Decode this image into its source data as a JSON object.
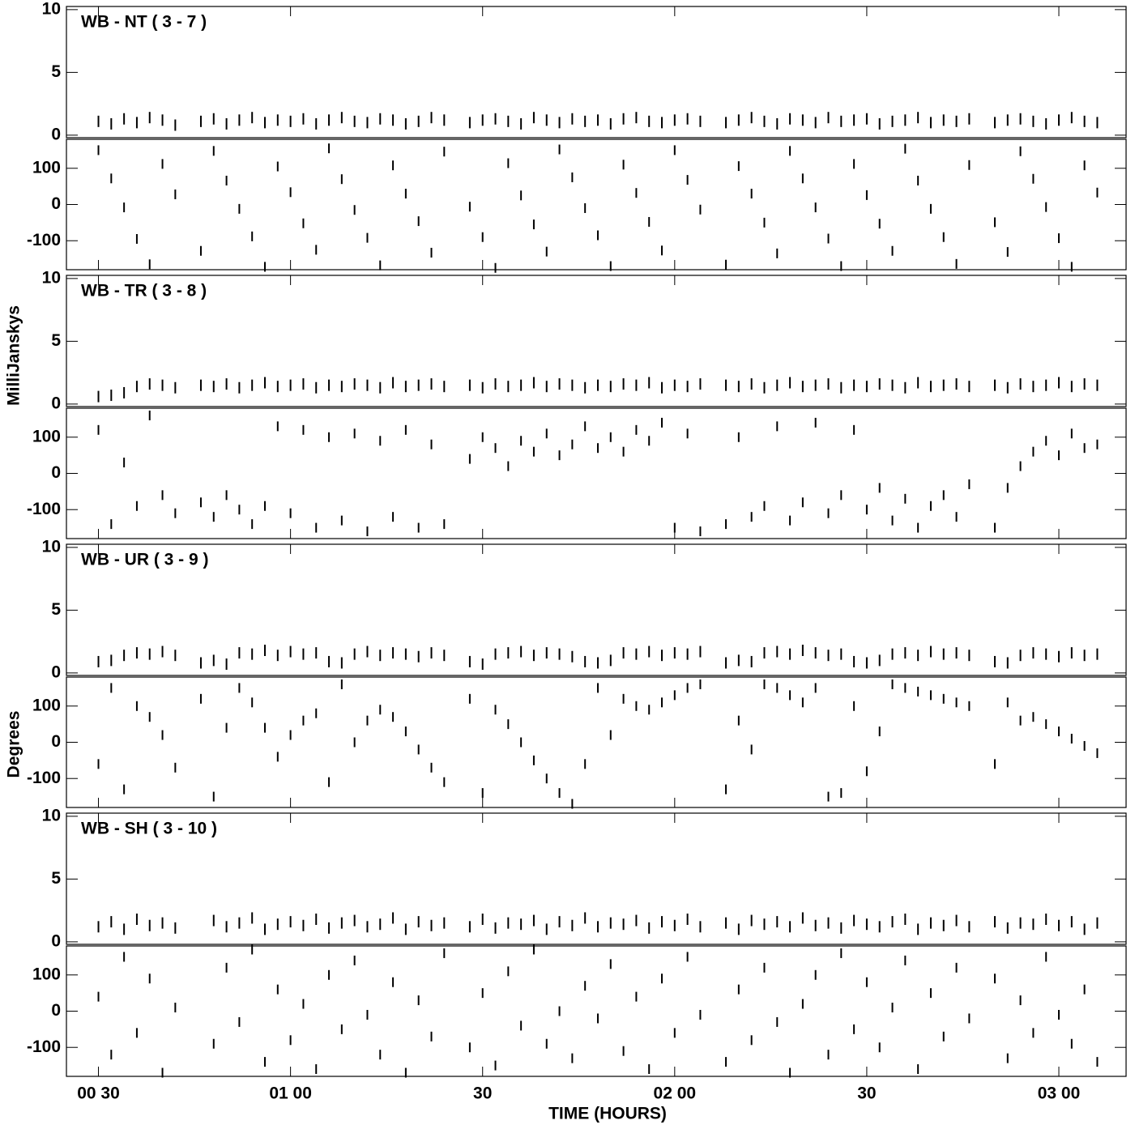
{
  "chart_data": {
    "type": "scatter",
    "xlabel": "TIME (HOURS)",
    "amplitude_ylabel": "MilliJanskys",
    "phase_ylabel": "Degrees",
    "color": "#000000",
    "xlim": [
      25,
      190.5
    ],
    "xticks": [
      {
        "value": 30,
        "label": "00 30"
      },
      {
        "value": 60,
        "label": "01 00"
      },
      {
        "value": 90,
        "label": "30"
      },
      {
        "value": 120,
        "label": "02 00"
      },
      {
        "value": 150,
        "label": "30"
      },
      {
        "value": 180,
        "label": "03 00"
      }
    ],
    "amplitude_ylim": [
      -0.2,
      10.25
    ],
    "amplitude_yticks": [
      0,
      5,
      10
    ],
    "phase_ylim": [
      -180,
      180
    ],
    "phase_yticks": [
      -100,
      0,
      100
    ],
    "x": [
      30,
      32,
      34,
      36,
      38,
      40,
      42,
      44,
      46,
      48,
      50,
      52,
      54,
      56,
      58,
      60,
      62,
      64,
      66,
      68,
      70,
      72,
      74,
      76,
      78,
      80,
      82,
      84,
      86,
      88,
      90,
      92,
      94,
      96,
      98,
      100,
      102,
      104,
      106,
      108,
      110,
      112,
      114,
      116,
      118,
      120,
      122,
      124,
      126,
      128,
      130,
      132,
      134,
      136,
      138,
      140,
      142,
      144,
      146,
      148,
      150,
      152,
      154,
      156,
      158,
      160,
      162,
      164,
      166,
      168,
      170,
      172,
      174,
      176,
      178,
      180,
      182,
      184,
      186
    ],
    "panels": [
      {
        "title": "WB - NT ( 3 - 7 )",
        "amplitude": [
          1.1,
          0.9,
          1.3,
          1.0,
          1.4,
          1.2,
          0.8,
          null,
          1.1,
          1.3,
          0.9,
          1.2,
          1.4,
          1.0,
          1.2,
          1.1,
          1.3,
          0.9,
          1.2,
          1.4,
          1.1,
          1.0,
          1.3,
          1.2,
          0.9,
          1.1,
          1.4,
          1.2,
          null,
          1.0,
          1.2,
          1.3,
          1.1,
          0.9,
          1.4,
          1.2,
          1.0,
          1.3,
          1.1,
          1.2,
          0.9,
          1.3,
          1.4,
          1.1,
          1.0,
          1.2,
          1.3,
          1.1,
          null,
          1.0,
          1.2,
          1.4,
          1.1,
          0.9,
          1.3,
          1.2,
          1.0,
          1.4,
          1.1,
          1.2,
          1.3,
          0.9,
          1.1,
          1.2,
          1.4,
          1.0,
          1.2,
          1.1,
          1.3,
          null,
          1.0,
          1.2,
          1.3,
          1.1,
          0.9,
          1.2,
          1.4,
          1.1,
          1.0
        ],
        "phase": [
          150,
          72,
          -8,
          -95,
          -165,
          112,
          28,
          null,
          -128,
          148,
          66,
          -12,
          -88,
          -172,
          105,
          34,
          -52,
          -125,
          155,
          70,
          -15,
          -92,
          -168,
          108,
          30,
          -46,
          -133,
          146,
          null,
          -6,
          -90,
          -175,
          114,
          25,
          -55,
          -130,
          152,
          75,
          -10,
          -85,
          -170,
          110,
          32,
          -48,
          -127,
          150,
          68,
          -14,
          null,
          -166,
          106,
          30,
          -50,
          -135,
          148,
          72,
          -8,
          -94,
          -170,
          112,
          26,
          -53,
          -128,
          154,
          66,
          -12,
          -90,
          -164,
          109,
          null,
          -49,
          -131,
          147,
          71,
          -7,
          -93,
          -172,
          108,
          33
        ]
      },
      {
        "title": "WB - TR ( 3 - 8 )",
        "amplitude": [
          0.6,
          0.7,
          0.9,
          1.4,
          1.6,
          1.5,
          1.3,
          null,
          1.5,
          1.4,
          1.6,
          1.3,
          1.5,
          1.7,
          1.4,
          1.5,
          1.6,
          1.3,
          1.5,
          1.4,
          1.6,
          1.5,
          1.3,
          1.7,
          1.4,
          1.5,
          1.6,
          1.4,
          null,
          1.5,
          1.3,
          1.6,
          1.4,
          1.5,
          1.7,
          1.4,
          1.6,
          1.5,
          1.3,
          1.5,
          1.4,
          1.6,
          1.5,
          1.7,
          1.3,
          1.5,
          1.4,
          1.6,
          null,
          1.5,
          1.4,
          1.6,
          1.3,
          1.5,
          1.7,
          1.4,
          1.5,
          1.6,
          1.3,
          1.5,
          1.4,
          1.6,
          1.5,
          1.3,
          1.7,
          1.4,
          1.5,
          1.6,
          1.4,
          null,
          1.5,
          1.3,
          1.6,
          1.4,
          1.5,
          1.7,
          1.4,
          1.6,
          1.5
        ],
        "phase": [
          120,
          -140,
          30,
          -90,
          160,
          -60,
          -110,
          null,
          -80,
          -120,
          -60,
          -100,
          -140,
          -90,
          130,
          -110,
          120,
          -150,
          100,
          -130,
          110,
          -160,
          90,
          -120,
          120,
          -150,
          80,
          -140,
          null,
          40,
          100,
          70,
          20,
          90,
          60,
          110,
          50,
          80,
          130,
          70,
          100,
          60,
          120,
          90,
          140,
          -150,
          110,
          -160,
          null,
          -140,
          100,
          -120,
          -90,
          130,
          -130,
          -80,
          140,
          -110,
          -60,
          120,
          -100,
          -40,
          -130,
          -70,
          -150,
          -90,
          -60,
          -120,
          -30,
          null,
          -150,
          -40,
          20,
          60,
          90,
          50,
          110,
          70,
          80
        ]
      },
      {
        "title": "WB - UR ( 3 - 9 )",
        "amplitude": [
          0.9,
          1.0,
          1.4,
          1.6,
          1.5,
          1.7,
          1.4,
          null,
          0.8,
          1.0,
          0.7,
          1.6,
          1.5,
          1.8,
          1.4,
          1.7,
          1.5,
          1.6,
          0.9,
          0.8,
          1.5,
          1.7,
          1.4,
          1.6,
          1.5,
          1.3,
          1.6,
          1.4,
          null,
          0.9,
          0.7,
          1.5,
          1.6,
          1.7,
          1.4,
          1.6,
          1.5,
          1.3,
          0.9,
          0.8,
          1.0,
          1.6,
          1.5,
          1.7,
          1.4,
          1.6,
          1.5,
          1.7,
          null,
          0.8,
          1.0,
          0.9,
          1.6,
          1.7,
          1.5,
          1.8,
          1.6,
          1.4,
          1.5,
          0.9,
          0.8,
          1.0,
          1.5,
          1.6,
          1.4,
          1.7,
          1.5,
          1.6,
          1.4,
          null,
          0.9,
          0.8,
          1.4,
          1.6,
          1.5,
          1.3,
          1.6,
          1.4,
          1.5
        ],
        "phase": [
          -60,
          150,
          -130,
          100,
          70,
          20,
          -70,
          null,
          120,
          -150,
          40,
          150,
          110,
          40,
          -40,
          20,
          60,
          80,
          -110,
          160,
          0,
          60,
          90,
          70,
          30,
          -20,
          -70,
          -110,
          null,
          120,
          -140,
          90,
          50,
          0,
          -50,
          -100,
          -140,
          -170,
          -60,
          150,
          20,
          120,
          100,
          90,
          110,
          130,
          150,
          160,
          null,
          -130,
          60,
          -20,
          160,
          150,
          130,
          110,
          150,
          -150,
          -140,
          100,
          -80,
          30,
          160,
          150,
          140,
          130,
          120,
          110,
          100,
          null,
          -60,
          110,
          60,
          70,
          50,
          30,
          10,
          -10,
          -30
        ]
      },
      {
        "title": "WB - SH ( 3 - 10 )",
        "amplitude": [
          1.2,
          1.6,
          1.0,
          1.8,
          1.3,
          1.5,
          1.1,
          null,
          null,
          1.7,
          1.2,
          1.5,
          1.9,
          1.0,
          1.4,
          1.6,
          1.3,
          1.8,
          1.1,
          1.5,
          1.7,
          1.2,
          1.4,
          1.9,
          1.0,
          1.6,
          1.3,
          1.5,
          null,
          1.2,
          1.8,
          1.1,
          1.5,
          1.4,
          1.7,
          1.0,
          1.6,
          1.3,
          1.9,
          1.2,
          1.5,
          1.4,
          1.7,
          1.1,
          1.6,
          1.3,
          1.8,
          1.2,
          null,
          1.5,
          1.0,
          1.7,
          1.4,
          1.6,
          1.2,
          1.9,
          1.3,
          1.5,
          1.1,
          1.7,
          1.4,
          1.2,
          1.6,
          1.8,
          1.0,
          1.5,
          1.3,
          1.7,
          1.2,
          null,
          1.6,
          1.1,
          1.5,
          1.4,
          1.8,
          1.3,
          1.6,
          1.0,
          1.5
        ],
        "phase": [
          40,
          -120,
          150,
          -60,
          90,
          -170,
          10,
          null,
          null,
          -90,
          120,
          -30,
          170,
          -140,
          60,
          -80,
          20,
          -160,
          100,
          -50,
          140,
          -10,
          -120,
          80,
          -170,
          30,
          -70,
          160,
          null,
          -100,
          50,
          -150,
          110,
          -40,
          170,
          -90,
          0,
          -130,
          70,
          -20,
          130,
          -110,
          40,
          -160,
          90,
          -60,
          150,
          -10,
          null,
          -140,
          60,
          -80,
          120,
          -30,
          -170,
          20,
          100,
          -120,
          160,
          -50,
          80,
          -100,
          10,
          140,
          -160,
          50,
          -70,
          120,
          -20,
          null,
          90,
          -130,
          30,
          -60,
          150,
          -10,
          -90,
          60,
          -140
        ]
      }
    ]
  }
}
